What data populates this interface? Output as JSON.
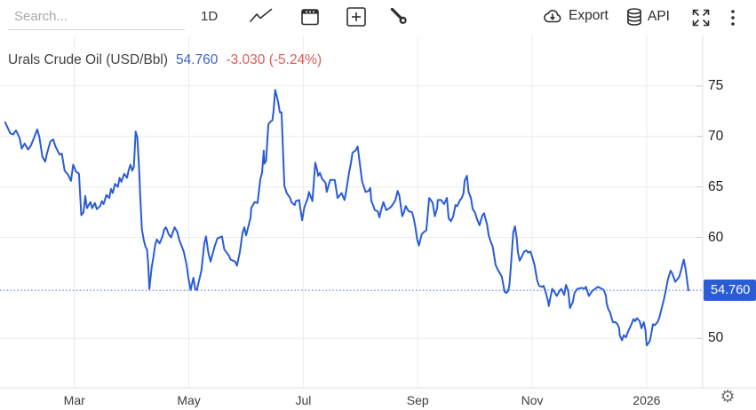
{
  "toolbar": {
    "search": {
      "placeholder": "Search..."
    },
    "timeframe": "1D",
    "export_label": "Export",
    "api_label": "API"
  },
  "header": {
    "title": "Urals Crude Oil (USD/Bbl)",
    "value": "54.760",
    "change": "-3.030 (-5.24%)"
  },
  "price_axis": {
    "tag": "54.760"
  },
  "colors": {
    "accent_blue": "#2a5cd5",
    "value_blue": "#3d64c8",
    "change_red": "#dc5a56",
    "gridline": "#ececec",
    "axis_line": "#e0e0e0"
  },
  "chart_data": {
    "type": "line",
    "title": "Urals Crude Oil (USD/Bbl)",
    "ylabel": "USD/Bbl",
    "last_value": 54.76,
    "change": -3.03,
    "change_pct": -5.24,
    "x_axis": {
      "unit": "months_since_2025-01-01",
      "range": [
        0.7,
        12.98
      ],
      "ticks": [
        [
          2,
          "Mar"
        ],
        [
          4,
          "May"
        ],
        [
          6,
          "Jul"
        ],
        [
          8,
          "Sep"
        ],
        [
          10,
          "Nov"
        ],
        [
          12,
          "2026"
        ]
      ]
    },
    "y_axis": {
      "side": "right",
      "range": [
        45.1,
        80.0
      ],
      "ticks": [
        75,
        70,
        65,
        60,
        50
      ]
    },
    "current_price_line": {
      "value": 54.76,
      "style": "dotted"
    },
    "legend": "off",
    "grid": "on",
    "series": [
      {
        "name": "Urals Crude Oil",
        "color": "#2a5cd5",
        "points": [
          [
            0.79,
            71.4
          ],
          [
            0.88,
            70.3
          ],
          [
            0.93,
            70.2
          ],
          [
            0.98,
            70.6
          ],
          [
            1.04,
            69.9
          ],
          [
            1.08,
            68.8
          ],
          [
            1.13,
            69.3
          ],
          [
            1.19,
            68.7
          ],
          [
            1.24,
            69.1
          ],
          [
            1.29,
            69.8
          ],
          [
            1.35,
            70.7
          ],
          [
            1.39,
            69.9
          ],
          [
            1.44,
            68.0
          ],
          [
            1.49,
            67.5
          ],
          [
            1.52,
            68.3
          ],
          [
            1.58,
            69.5
          ],
          [
            1.63,
            69.7
          ],
          [
            1.67,
            69.0
          ],
          [
            1.74,
            68.2
          ],
          [
            1.78,
            68.3
          ],
          [
            1.83,
            66.6
          ],
          [
            1.89,
            66.2
          ],
          [
            1.94,
            65.6
          ],
          [
            1.98,
            67.2
          ],
          [
            2.03,
            66.5
          ],
          [
            2.08,
            66.3
          ],
          [
            2.12,
            62.2
          ],
          [
            2.16,
            62.5
          ],
          [
            2.19,
            64.1
          ],
          [
            2.22,
            62.9
          ],
          [
            2.28,
            63.5
          ],
          [
            2.31,
            62.9
          ],
          [
            2.36,
            63.4
          ],
          [
            2.39,
            62.8
          ],
          [
            2.45,
            63.1
          ],
          [
            2.48,
            63.6
          ],
          [
            2.51,
            63.3
          ],
          [
            2.56,
            64.2
          ],
          [
            2.61,
            63.9
          ],
          [
            2.64,
            64.8
          ],
          [
            2.67,
            64.4
          ],
          [
            2.71,
            65.3
          ],
          [
            2.76,
            65.0
          ],
          [
            2.79,
            65.9
          ],
          [
            2.82,
            65.5
          ],
          [
            2.87,
            66.3
          ],
          [
            2.92,
            65.9
          ],
          [
            2.95,
            66.7
          ],
          [
            2.98,
            67.2
          ],
          [
            3.01,
            66.6
          ],
          [
            3.04,
            67.0
          ],
          [
            3.07,
            70.5
          ],
          [
            3.1,
            69.9
          ],
          [
            3.13,
            67.0
          ],
          [
            3.15,
            64.2
          ],
          [
            3.18,
            60.8
          ],
          [
            3.21,
            59.8
          ],
          [
            3.24,
            59.1
          ],
          [
            3.27,
            58.8
          ],
          [
            3.29,
            57.4
          ],
          [
            3.31,
            54.9
          ],
          [
            3.35,
            57.0
          ],
          [
            3.38,
            58.0
          ],
          [
            3.41,
            59.2
          ],
          [
            3.44,
            59.8
          ],
          [
            3.49,
            59.4
          ],
          [
            3.54,
            60.1
          ],
          [
            3.57,
            60.8
          ],
          [
            3.6,
            61.0
          ],
          [
            3.65,
            60.3
          ],
          [
            3.69,
            60.0
          ],
          [
            3.75,
            61.0
          ],
          [
            3.8,
            60.5
          ],
          [
            3.83,
            59.8
          ],
          [
            3.91,
            58.6
          ],
          [
            3.96,
            57.3
          ],
          [
            3.99,
            56.1
          ],
          [
            4.03,
            54.8
          ],
          [
            4.08,
            56.0
          ],
          [
            4.11,
            54.9
          ],
          [
            4.14,
            54.8
          ],
          [
            4.22,
            56.7
          ],
          [
            4.27,
            59.4
          ],
          [
            4.3,
            60.1
          ],
          [
            4.34,
            58.5
          ],
          [
            4.38,
            57.6
          ],
          [
            4.45,
            59.1
          ],
          [
            4.5,
            59.9
          ],
          [
            4.58,
            60.1
          ],
          [
            4.62,
            58.8
          ],
          [
            4.7,
            58.2
          ],
          [
            4.73,
            57.8
          ],
          [
            4.81,
            57.6
          ],
          [
            4.84,
            57.2
          ],
          [
            4.89,
            58.5
          ],
          [
            4.94,
            60.5
          ],
          [
            4.97,
            61.0
          ],
          [
            5.0,
            60.2
          ],
          [
            5.04,
            61.1
          ],
          [
            5.08,
            62.0
          ],
          [
            5.09,
            62.9
          ],
          [
            5.15,
            63.5
          ],
          [
            5.2,
            63.4
          ],
          [
            5.25,
            65.8
          ],
          [
            5.28,
            66.4
          ],
          [
            5.31,
            68.6
          ],
          [
            5.32,
            67.3
          ],
          [
            5.35,
            67.6
          ],
          [
            5.39,
            71.2
          ],
          [
            5.43,
            71.5
          ],
          [
            5.46,
            71.6
          ],
          [
            5.48,
            72.5
          ],
          [
            5.51,
            74.6
          ],
          [
            5.54,
            73.9
          ],
          [
            5.56,
            73.4
          ],
          [
            5.59,
            72.4
          ],
          [
            5.62,
            72.4
          ],
          [
            5.63,
            70.8
          ],
          [
            5.67,
            65.1
          ],
          [
            5.7,
            64.6
          ],
          [
            5.71,
            64.4
          ],
          [
            5.77,
            63.9
          ],
          [
            5.79,
            63.5
          ],
          [
            5.85,
            63.2
          ],
          [
            5.87,
            63.6
          ],
          [
            5.93,
            63.7
          ],
          [
            5.94,
            63.2
          ],
          [
            5.98,
            61.7
          ],
          [
            6.01,
            62.7
          ],
          [
            6.02,
            63.0
          ],
          [
            6.08,
            63.9
          ],
          [
            6.1,
            64.5
          ],
          [
            6.16,
            63.6
          ],
          [
            6.21,
            67.4
          ],
          [
            6.24,
            66.7
          ],
          [
            6.26,
            66.1
          ],
          [
            6.29,
            66.4
          ],
          [
            6.33,
            65.8
          ],
          [
            6.39,
            65.4
          ],
          [
            6.41,
            64.5
          ],
          [
            6.44,
            65.1
          ],
          [
            6.47,
            65.7
          ],
          [
            6.55,
            65.7
          ],
          [
            6.6,
            63.9
          ],
          [
            6.67,
            64.4
          ],
          [
            6.72,
            63.7
          ],
          [
            6.75,
            64.6
          ],
          [
            6.8,
            66.4
          ],
          [
            6.83,
            67.3
          ],
          [
            6.86,
            68.4
          ],
          [
            6.91,
            68.6
          ],
          [
            6.95,
            69.0
          ],
          [
            7.02,
            65.9
          ],
          [
            7.03,
            65.5
          ],
          [
            7.09,
            64.5
          ],
          [
            7.14,
            64.6
          ],
          [
            7.17,
            64.9
          ],
          [
            7.19,
            63.6
          ],
          [
            7.22,
            63.2
          ],
          [
            7.25,
            62.7
          ],
          [
            7.3,
            62.6
          ],
          [
            7.33,
            62.0
          ],
          [
            7.37,
            62.9
          ],
          [
            7.4,
            63.5
          ],
          [
            7.45,
            62.7
          ],
          [
            7.53,
            63.0
          ],
          [
            7.58,
            63.4
          ],
          [
            7.61,
            63.7
          ],
          [
            7.64,
            64.4
          ],
          [
            7.65,
            64.6
          ],
          [
            7.68,
            64.1
          ],
          [
            7.73,
            62.1
          ],
          [
            7.76,
            62.5
          ],
          [
            7.79,
            63.1
          ],
          [
            7.84,
            62.6
          ],
          [
            7.9,
            62.5
          ],
          [
            7.93,
            61.9
          ],
          [
            7.96,
            61.0
          ],
          [
            7.99,
            59.8
          ],
          [
            8.02,
            59.2
          ],
          [
            8.07,
            60.3
          ],
          [
            8.1,
            60.5
          ],
          [
            8.15,
            60.7
          ],
          [
            8.2,
            63.9
          ],
          [
            8.23,
            63.7
          ],
          [
            8.26,
            63.4
          ],
          [
            8.3,
            62.1
          ],
          [
            8.34,
            62.9
          ],
          [
            8.35,
            63.7
          ],
          [
            8.41,
            63.7
          ],
          [
            8.46,
            63.3
          ],
          [
            8.51,
            63.9
          ],
          [
            8.54,
            61.9
          ],
          [
            8.58,
            61.6
          ],
          [
            8.62,
            62.1
          ],
          [
            8.66,
            63.2
          ],
          [
            8.69,
            63.1
          ],
          [
            8.74,
            63.7
          ],
          [
            8.77,
            63.9
          ],
          [
            8.8,
            64.4
          ],
          [
            8.82,
            65.6
          ],
          [
            8.86,
            66.1
          ],
          [
            8.89,
            64.5
          ],
          [
            8.93,
            63.9
          ],
          [
            8.96,
            62.8
          ],
          [
            9.0,
            62.5
          ],
          [
            9.03,
            61.9
          ],
          [
            9.08,
            61.2
          ],
          [
            9.13,
            62.2
          ],
          [
            9.16,
            62.4
          ],
          [
            9.21,
            61.3
          ],
          [
            9.24,
            60.2
          ],
          [
            9.28,
            59.5
          ],
          [
            9.31,
            59.1
          ],
          [
            9.36,
            57.3
          ],
          [
            9.39,
            56.9
          ],
          [
            9.44,
            56.4
          ],
          [
            9.47,
            56.1
          ],
          [
            9.5,
            55.2
          ],
          [
            9.52,
            54.6
          ],
          [
            9.55,
            54.5
          ],
          [
            9.58,
            54.7
          ],
          [
            9.6,
            55.2
          ],
          [
            9.62,
            56.6
          ],
          [
            9.65,
            58.9
          ],
          [
            9.67,
            60.5
          ],
          [
            9.7,
            61.1
          ],
          [
            9.73,
            59.9
          ],
          [
            9.75,
            58.6
          ],
          [
            9.78,
            57.7
          ],
          [
            9.81,
            58.0
          ],
          [
            9.86,
            58.6
          ],
          [
            9.9,
            58.7
          ],
          [
            9.93,
            58.5
          ],
          [
            9.97,
            58.6
          ],
          [
            10.01,
            57.9
          ],
          [
            10.04,
            57.3
          ],
          [
            10.09,
            55.7
          ],
          [
            10.12,
            55.2
          ],
          [
            10.17,
            55.1
          ],
          [
            10.2,
            55.2
          ],
          [
            10.24,
            54.5
          ],
          [
            10.28,
            53.6
          ],
          [
            10.29,
            53.2
          ],
          [
            10.32,
            54.1
          ],
          [
            10.35,
            54.9
          ],
          [
            10.4,
            54.5
          ],
          [
            10.43,
            54.2
          ],
          [
            10.48,
            54.7
          ],
          [
            10.51,
            54.9
          ],
          [
            10.56,
            54.3
          ],
          [
            10.59,
            55.3
          ],
          [
            10.63,
            54.7
          ],
          [
            10.66,
            53.0
          ],
          [
            10.71,
            53.6
          ],
          [
            10.74,
            54.5
          ],
          [
            10.79,
            54.9
          ],
          [
            10.87,
            55.0
          ],
          [
            10.91,
            54.9
          ],
          [
            10.94,
            55.1
          ],
          [
            10.99,
            54.2
          ],
          [
            11.05,
            54.7
          ],
          [
            11.1,
            54.9
          ],
          [
            11.15,
            55.1
          ],
          [
            11.22,
            54.9
          ],
          [
            11.25,
            54.8
          ],
          [
            11.29,
            54.2
          ],
          [
            11.3,
            53.5
          ],
          [
            11.33,
            52.9
          ],
          [
            11.36,
            52.6
          ],
          [
            11.41,
            51.6
          ],
          [
            11.46,
            51.6
          ],
          [
            11.49,
            51.4
          ],
          [
            11.52,
            51.0
          ],
          [
            11.53,
            50.3
          ],
          [
            11.57,
            49.8
          ],
          [
            11.6,
            50.3
          ],
          [
            11.64,
            50.1
          ],
          [
            11.67,
            50.6
          ],
          [
            11.72,
            51.2
          ],
          [
            11.77,
            51.9
          ],
          [
            11.8,
            51.7
          ],
          [
            11.83,
            52.0
          ],
          [
            11.88,
            51.7
          ],
          [
            11.91,
            51.0
          ],
          [
            11.95,
            51.6
          ],
          [
            11.98,
            50.8
          ],
          [
            12.0,
            49.3
          ],
          [
            12.03,
            49.5
          ],
          [
            12.06,
            49.8
          ],
          [
            12.11,
            51.4
          ],
          [
            12.14,
            51.3
          ],
          [
            12.19,
            51.6
          ],
          [
            12.22,
            52.0
          ],
          [
            12.26,
            52.9
          ],
          [
            12.3,
            53.8
          ],
          [
            12.34,
            54.9
          ],
          [
            12.37,
            55.8
          ],
          [
            12.42,
            56.7
          ],
          [
            12.45,
            56.4
          ],
          [
            12.5,
            55.6
          ],
          [
            12.53,
            55.8
          ],
          [
            12.57,
            56.1
          ],
          [
            12.6,
            56.7
          ],
          [
            12.65,
            57.8
          ],
          [
            12.68,
            56.9
          ],
          [
            12.73,
            54.76
          ]
        ]
      }
    ]
  }
}
